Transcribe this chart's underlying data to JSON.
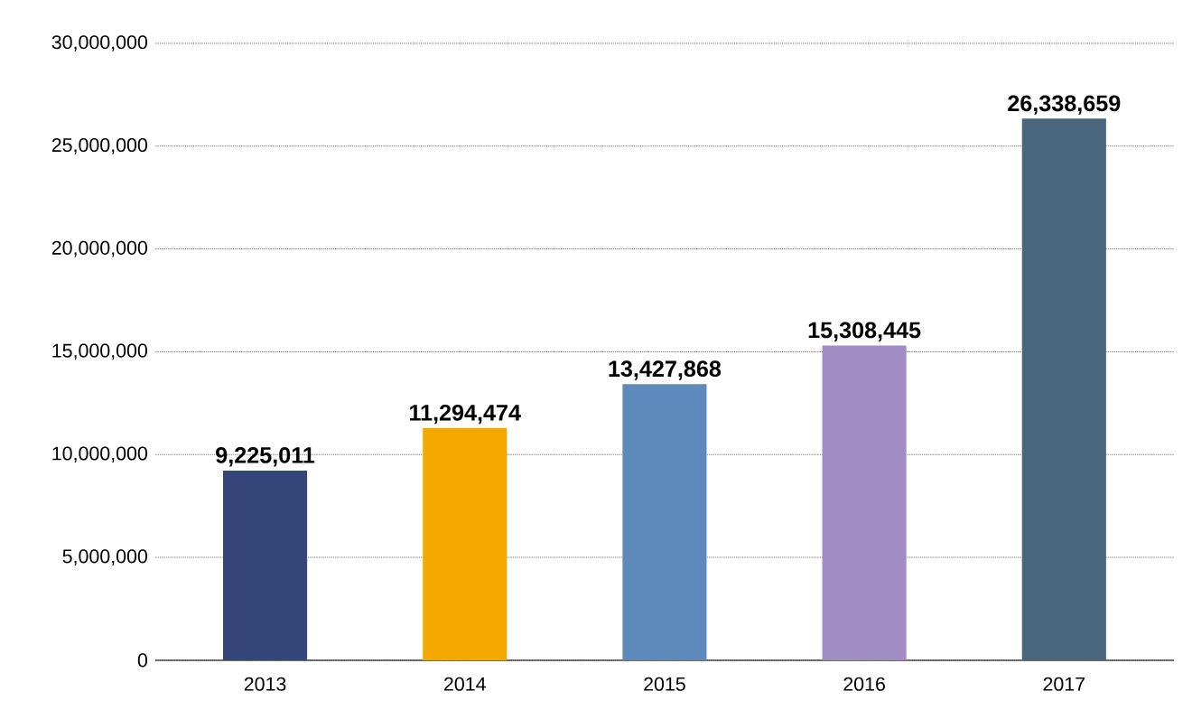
{
  "chart_data": {
    "type": "bar",
    "categories": [
      "2013",
      "2014",
      "2015",
      "2016",
      "2017"
    ],
    "values": [
      9225011,
      11294474,
      13427868,
      15308445,
      26338659
    ],
    "value_labels": [
      "9,225,011",
      "11,294,474",
      "13,427,868",
      "15,308,445",
      "26,338,659"
    ],
    "colors": [
      "#34467a",
      "#f5a800",
      "#5e89bb",
      "#a08dc3",
      "#4a667d"
    ],
    "ylim": [
      0,
      30000000
    ],
    "yticks": [
      0,
      {
        "value": 5000000,
        "label": "5,000,000"
      },
      {
        "value": 10000000,
        "label": "10,000,000"
      },
      {
        "value": 15000000,
        "label": "15,000,000"
      },
      {
        "value": 20000000,
        "label": "20,000,000"
      },
      {
        "value": 25000000,
        "label": "25,000,000"
      },
      {
        "value": 30000000,
        "label": "30,000,000"
      }
    ],
    "grid": "y"
  }
}
